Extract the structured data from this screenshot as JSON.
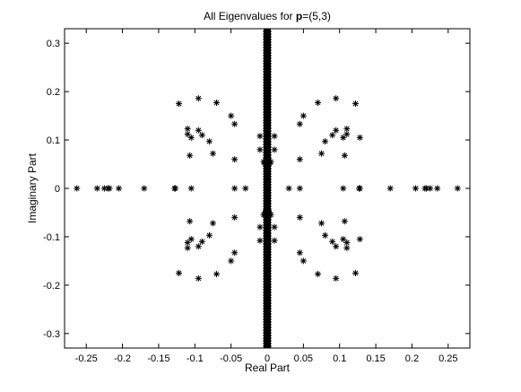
{
  "chart_data": {
    "type": "scatter",
    "title_prefix": "All Eigenvalues for ",
    "title_bold": "p",
    "title_suffix": "=(5,3)",
    "xlabel": "Real Part",
    "ylabel": "Imaginary Part",
    "xlim": [
      -0.28,
      0.28
    ],
    "ylim": [
      -0.33,
      0.33
    ],
    "xticks": [
      -0.25,
      -0.2,
      -0.15,
      -0.1,
      -0.05,
      0,
      0.05,
      0.1,
      0.15,
      0.2,
      0.25
    ],
    "xtick_labels": [
      "-0.25",
      "-0.2",
      "-0.15",
      "-0.1",
      "-0.05",
      "0",
      "0.05",
      "0.1",
      "0.15",
      "0.2",
      "0.25"
    ],
    "yticks": [
      -0.3,
      -0.2,
      -0.1,
      0,
      0.1,
      0.2,
      0.3
    ],
    "ytick_labels": [
      "-0.3",
      "-0.2",
      "-0.1",
      "0",
      "0.1",
      "0.2",
      "0.3"
    ],
    "marker": "asterisk",
    "dense_band": {
      "x": 0,
      "y_range": [
        -0.33,
        0.33
      ]
    },
    "points": [
      [
        -0.263,
        0
      ],
      [
        -0.235,
        0
      ],
      [
        -0.225,
        0
      ],
      [
        -0.22,
        0
      ],
      [
        -0.218,
        0
      ],
      [
        -0.205,
        0
      ],
      [
        -0.17,
        0
      ],
      [
        -0.128,
        0
      ],
      [
        -0.127,
        0
      ],
      [
        -0.105,
        0
      ],
      [
        -0.045,
        0
      ],
      [
        -0.03,
        0
      ],
      [
        0.263,
        0
      ],
      [
        0.235,
        0
      ],
      [
        0.225,
        0
      ],
      [
        0.22,
        0
      ],
      [
        0.218,
        0
      ],
      [
        0.205,
        0
      ],
      [
        0.17,
        0
      ],
      [
        0.128,
        0
      ],
      [
        0.127,
        0
      ],
      [
        0.105,
        0
      ],
      [
        0.045,
        0
      ],
      [
        0.03,
        0
      ],
      [
        -0.122,
        0.175
      ],
      [
        -0.11,
        0.123
      ],
      [
        -0.11,
        0.112
      ],
      [
        -0.105,
        0.105
      ],
      [
        -0.095,
        0.186
      ],
      [
        -0.095,
        0.12
      ],
      [
        -0.09,
        0.11
      ],
      [
        -0.08,
        0.097
      ],
      [
        -0.07,
        0.177
      ],
      [
        -0.075,
        0.072
      ],
      [
        -0.05,
        0.15
      ],
      [
        -0.045,
        0.133
      ],
      [
        -0.045,
        0.06
      ],
      [
        -0.01,
        0.108
      ],
      [
        -0.01,
        0.08
      ],
      [
        -0.107,
        0.068
      ],
      [
        0.122,
        0.175
      ],
      [
        0.11,
        0.123
      ],
      [
        0.11,
        0.112
      ],
      [
        0.105,
        0.105
      ],
      [
        0.095,
        0.186
      ],
      [
        0.095,
        0.12
      ],
      [
        0.09,
        0.11
      ],
      [
        0.08,
        0.097
      ],
      [
        0.07,
        0.177
      ],
      [
        0.075,
        0.072
      ],
      [
        0.05,
        0.15
      ],
      [
        0.045,
        0.133
      ],
      [
        0.045,
        0.06
      ],
      [
        0.01,
        0.108
      ],
      [
        0.01,
        0.08
      ],
      [
        0.107,
        0.068
      ],
      [
        0.128,
        0.105
      ],
      [
        -0.122,
        -0.175
      ],
      [
        -0.11,
        -0.123
      ],
      [
        -0.11,
        -0.112
      ],
      [
        -0.105,
        -0.105
      ],
      [
        -0.095,
        -0.186
      ],
      [
        -0.095,
        -0.12
      ],
      [
        -0.09,
        -0.11
      ],
      [
        -0.08,
        -0.097
      ],
      [
        -0.07,
        -0.177
      ],
      [
        -0.075,
        -0.072
      ],
      [
        -0.05,
        -0.15
      ],
      [
        -0.045,
        -0.133
      ],
      [
        -0.045,
        -0.06
      ],
      [
        -0.01,
        -0.108
      ],
      [
        -0.01,
        -0.08
      ],
      [
        -0.107,
        -0.068
      ],
      [
        0.122,
        -0.175
      ],
      [
        0.11,
        -0.123
      ],
      [
        0.11,
        -0.112
      ],
      [
        0.105,
        -0.105
      ],
      [
        0.095,
        -0.186
      ],
      [
        0.095,
        -0.12
      ],
      [
        0.09,
        -0.11
      ],
      [
        0.08,
        -0.097
      ],
      [
        0.07,
        -0.177
      ],
      [
        0.075,
        -0.072
      ],
      [
        0.05,
        -0.15
      ],
      [
        0.045,
        -0.133
      ],
      [
        0.045,
        -0.06
      ],
      [
        0.01,
        -0.108
      ],
      [
        0.01,
        -0.08
      ],
      [
        0.107,
        -0.068
      ],
      [
        0.128,
        -0.105
      ],
      [
        0.005,
        0.055
      ],
      [
        -0.005,
        0.055
      ],
      [
        0.003,
        0.05
      ],
      [
        -0.003,
        0.05
      ],
      [
        0.005,
        -0.055
      ],
      [
        -0.005,
        -0.055
      ],
      [
        0.003,
        -0.05
      ],
      [
        -0.003,
        -0.05
      ]
    ]
  }
}
